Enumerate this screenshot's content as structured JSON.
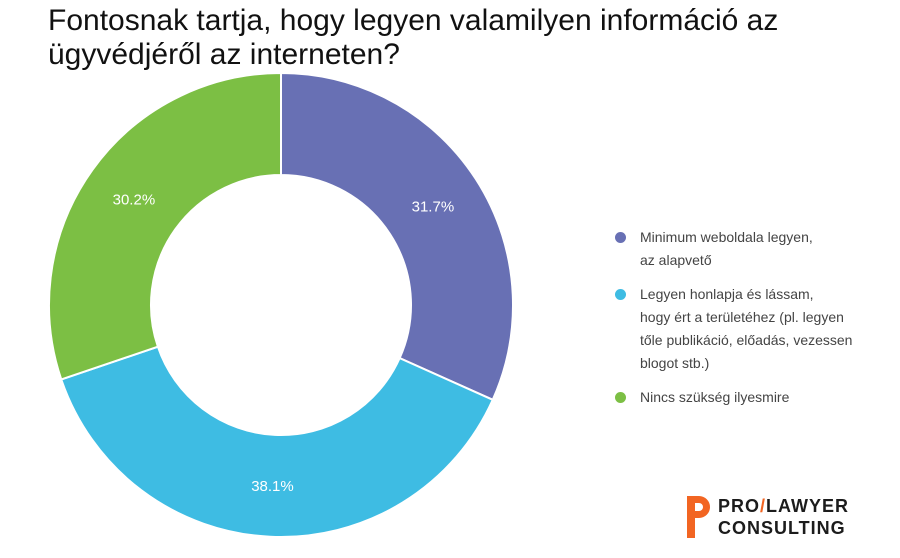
{
  "title": {
    "line1": "Fontosnak tartja, hogy legyen valamilyen információ az",
    "line2": "ügyvédjéről az interneten?"
  },
  "chart_data": {
    "type": "pie",
    "categories": [
      "Minimum weboldala legyen, az alapvető",
      "Legyen honlapja és lássam, hogy ért a területéhez (pl. legyen tőle publikáció, előadás, vezessen blogot stb.)",
      "Nincs szükség ilyesmire"
    ],
    "values": [
      31.7,
      38.1,
      30.2
    ],
    "data_labels": [
      "31.7%",
      "38.1%",
      "30.2%"
    ],
    "colors": [
      "#6870b4",
      "#3ebce3",
      "#7cbf44"
    ],
    "donut": true,
    "legend_position": "right"
  },
  "legend": [
    {
      "lines": [
        "Minimum weboldala legyen,",
        "az alapvető"
      ],
      "color": "#6870b4"
    },
    {
      "lines": [
        "Legyen honlapja és lássam,",
        "hogy ért a területéhez (pl. legyen",
        "tőle publikáció, előadás, vezessen",
        "blogot stb.)"
      ],
      "color": "#3ebce3"
    },
    {
      "lines": [
        "Nincs szükség ilyesmire"
      ],
      "color": "#7cbf44"
    }
  ],
  "logo": {
    "part1": "PRO",
    "slash": "/",
    "part2": "LAWYER",
    "line2": "CONSULTING",
    "accent_color": "#f26522"
  }
}
